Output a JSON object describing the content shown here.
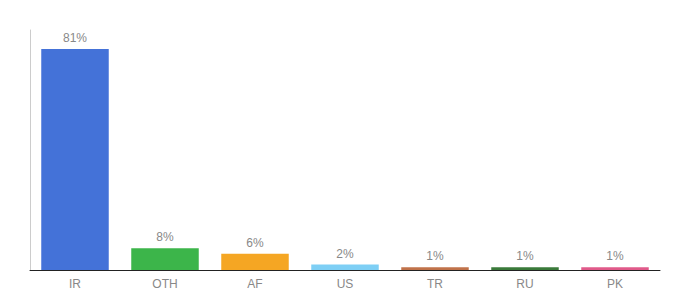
{
  "chart_data": {
    "type": "bar",
    "categories": [
      "IR",
      "OTH",
      "AF",
      "US",
      "TR",
      "RU",
      "PK"
    ],
    "values": [
      81,
      8,
      6,
      2,
      1,
      1,
      1
    ],
    "colors": [
      "#4472d8",
      "#3cb54a",
      "#f5a623",
      "#7ecff5",
      "#c0724a",
      "#3a7a3a",
      "#e05a8a"
    ],
    "ylim": [
      0,
      88
    ],
    "data_labels": true,
    "value_labels": [
      "81%",
      "8%",
      "6%",
      "2%",
      "1%",
      "1%",
      "1%"
    ],
    "grid": false,
    "tick_labels": "x"
  }
}
